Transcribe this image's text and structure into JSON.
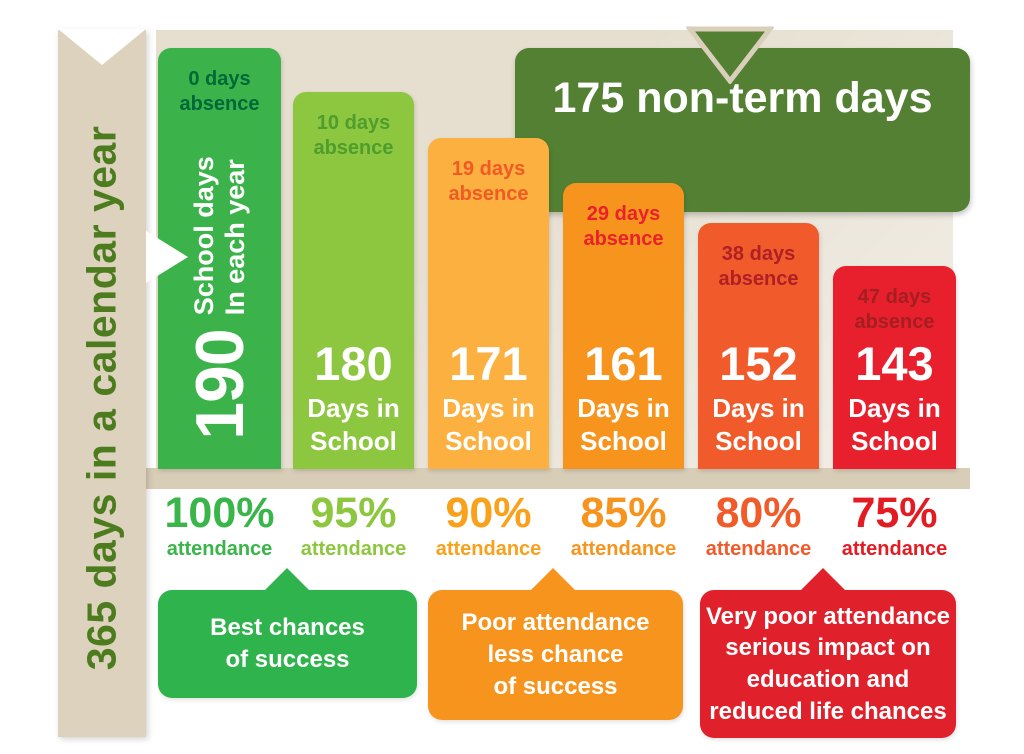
{
  "side_banner": {
    "label": "365 days in a calendar year",
    "color": "#dcd2be",
    "text_color": "#4d7c1f"
  },
  "background": {
    "chart_area_color": "#e6dfd0",
    "shelf_color": "#d8cdb7"
  },
  "non_term_banner": {
    "label": "175 non-term days",
    "color": "#538033",
    "pointer_outline": "#d9cfba"
  },
  "bars": [
    {
      "absence_lines": [
        "0 days",
        "absence"
      ],
      "absence_color": "#006838",
      "color": "#3bb34a",
      "number": "190",
      "caption_lines": [
        "School days",
        "In each year"
      ],
      "attendance_percent": "100%",
      "attendance_word": "attendance",
      "attendance_color": "#39b54a"
    },
    {
      "absence_lines": [
        "10 days",
        "absence"
      ],
      "absence_color": "#4f9d2d",
      "color": "#8dc63f",
      "number": "180",
      "caption_lines": [
        "Days in",
        "School"
      ],
      "attendance_percent": "95%",
      "attendance_word": "attendance",
      "attendance_color": "#8dc63f"
    },
    {
      "absence_lines": [
        "19 days",
        "absence"
      ],
      "absence_color": "#f15a24",
      "color": "#fbb040",
      "number": "171",
      "caption_lines": [
        "Days in",
        "School"
      ],
      "attendance_percent": "90%",
      "attendance_word": "attendance",
      "attendance_color": "#f9a11b"
    },
    {
      "absence_lines": [
        "29 days",
        "absence"
      ],
      "absence_color": "#e8212a",
      "color": "#f7941e",
      "number": "161",
      "caption_lines": [
        "Days in",
        "School"
      ],
      "attendance_percent": "85%",
      "attendance_word": "attendance",
      "attendance_color": "#f7941e"
    },
    {
      "absence_lines": [
        "38 days",
        "absence"
      ],
      "absence_color": "#b01f24",
      "color": "#f15b2b",
      "number": "152",
      "caption_lines": [
        "Days in",
        "School"
      ],
      "attendance_percent": "80%",
      "attendance_word": "attendance",
      "attendance_color": "#f15a29"
    },
    {
      "absence_lines": [
        "47 days",
        "absence"
      ],
      "absence_color": "#a41e22",
      "color": "#e8202d",
      "number": "143",
      "caption_lines": [
        "Days in",
        "School"
      ],
      "attendance_percent": "75%",
      "attendance_word": "attendance",
      "attendance_color": "#e31b23"
    }
  ],
  "callouts": [
    {
      "lines": [
        "Best chances",
        "of success"
      ],
      "color": "#2eb34d"
    },
    {
      "lines": [
        "Poor attendance",
        "less chance",
        "of success"
      ],
      "color": "#f7941e"
    },
    {
      "lines": [
        "Very poor attendance",
        "serious impact on",
        "education and",
        "reduced life chances"
      ],
      "color": "#e0202a"
    }
  ],
  "chart_data": {
    "type": "bar",
    "title": "365 days in a calendar year",
    "categories": [
      "100% attendance",
      "95% attendance",
      "90% attendance",
      "85% attendance",
      "80% attendance",
      "75% attendance"
    ],
    "series": [
      {
        "name": "Days in School",
        "values": [
          190,
          180,
          171,
          161,
          152,
          143
        ]
      },
      {
        "name": "Days absence",
        "values": [
          0,
          10,
          19,
          29,
          38,
          47
        ]
      }
    ],
    "annotations": [
      "175 non-term days",
      "School days In each year",
      "Best chances of success",
      "Poor attendance less chance of success",
      "Very poor attendance serious impact on education and reduced life chances"
    ],
    "ylim": [
      0,
      190
    ],
    "legend_position": "none",
    "grid": false
  }
}
